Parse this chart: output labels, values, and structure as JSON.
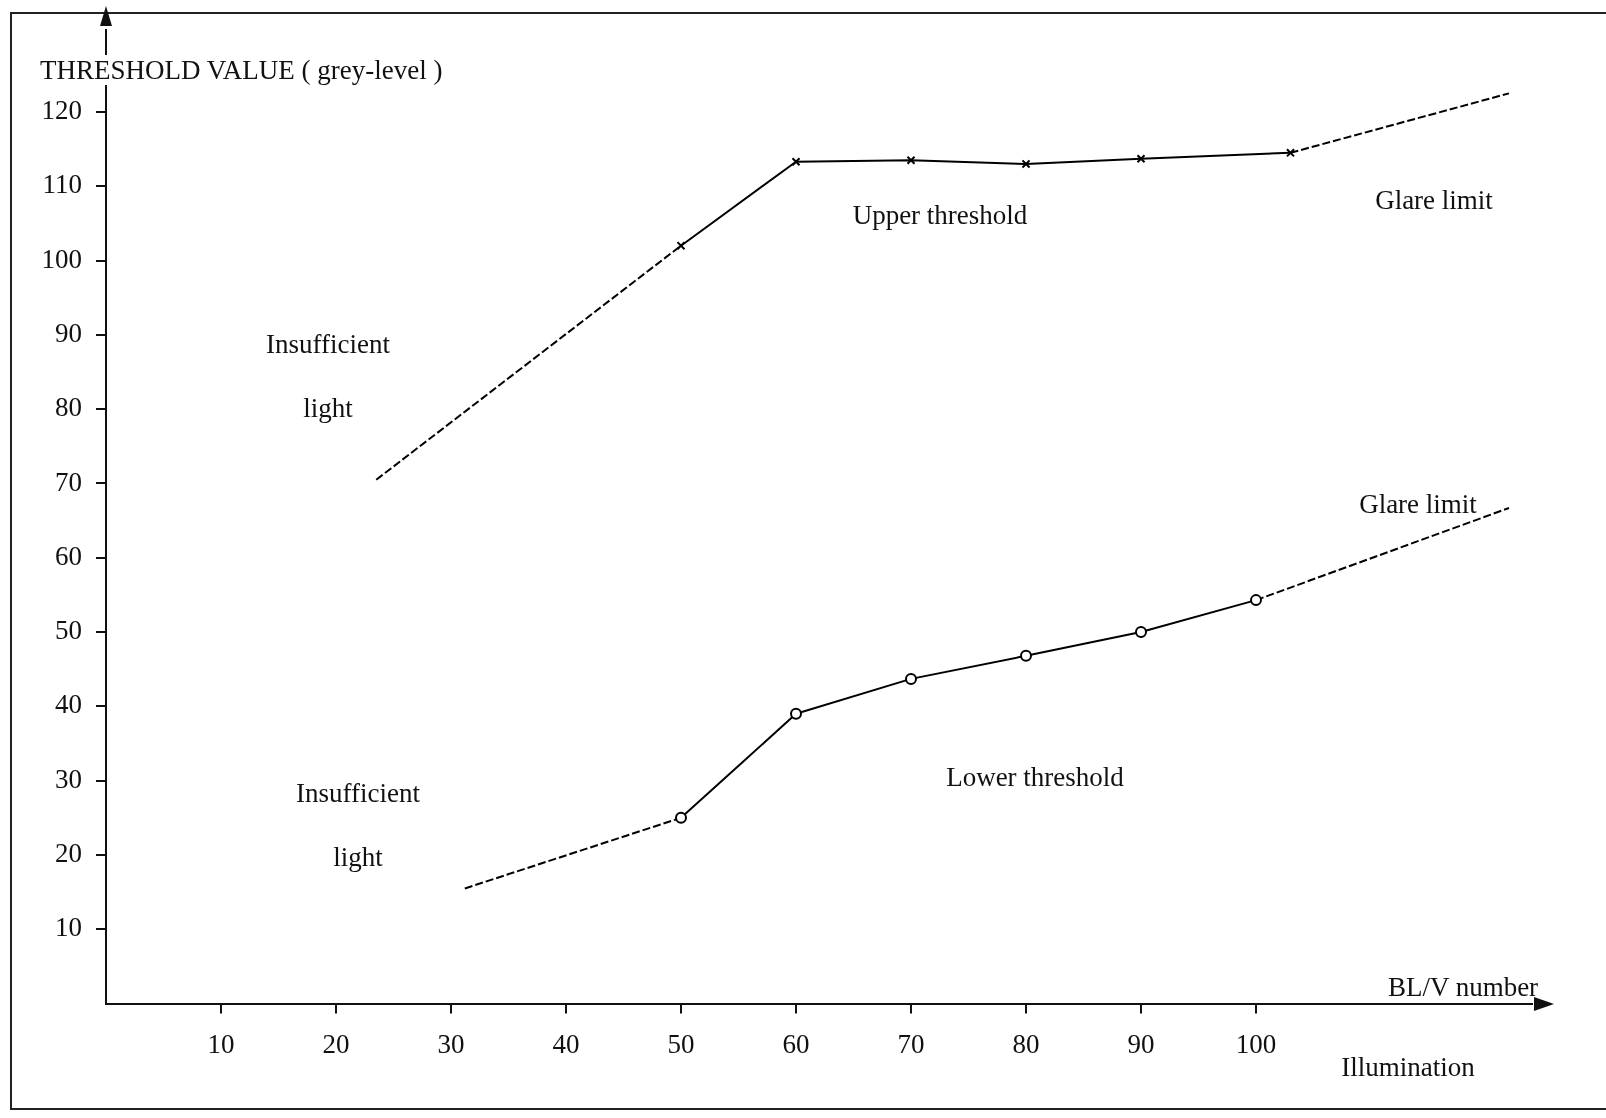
{
  "chart_data": {
    "type": "line",
    "ylabel": "THRESHOLD VALUE ( grey-level )",
    "xlabel": "Illumination",
    "xlim": [
      0,
      124
    ],
    "ylim": [
      0,
      131
    ],
    "xticks": [
      10,
      20,
      30,
      40,
      50,
      60,
      70,
      80,
      90,
      100
    ],
    "yticks": [
      10,
      20,
      30,
      40,
      50,
      60,
      70,
      80,
      90,
      100,
      110,
      120
    ],
    "grid": false,
    "legend": false,
    "series": [
      {
        "color": "#000000",
        "x": [
          50,
          60,
          70,
          80,
          90,
          103
        ],
        "values": [
          102,
          113.3,
          113.5,
          113,
          113.7,
          114.5
        ],
        "marker": "cross",
        "line_style": "solid"
      },
      {
        "color": "#000000",
        "x": [
          23.5,
          50
        ],
        "values": [
          70.5,
          102
        ],
        "marker": "none",
        "line_style": "dashed"
      },
      {
        "color": "#000000",
        "x": [
          103,
          122
        ],
        "values": [
          114.5,
          122.5
        ],
        "marker": "none",
        "line_style": "dashed"
      },
      {
        "color": "#000000",
        "x": [
          50,
          60,
          70,
          80,
          90,
          100
        ],
        "values": [
          25,
          39,
          43.7,
          46.8,
          50,
          54.3
        ],
        "marker": "circle",
        "line_style": "solid"
      },
      {
        "color": "#000000",
        "x": [
          31.2,
          50
        ],
        "values": [
          15.5,
          25
        ],
        "marker": "none",
        "line_style": "dashed"
      },
      {
        "color": "#000000",
        "x": [
          100,
          122
        ],
        "values": [
          54.3,
          66.7
        ],
        "marker": "none",
        "line_style": "dashed"
      }
    ],
    "annotations": [
      "Upper threshold",
      "Glare limit",
      "Insufficient light",
      "Lower threshold",
      "Glare limit",
      "Insufficient light",
      "BL/V number"
    ]
  }
}
